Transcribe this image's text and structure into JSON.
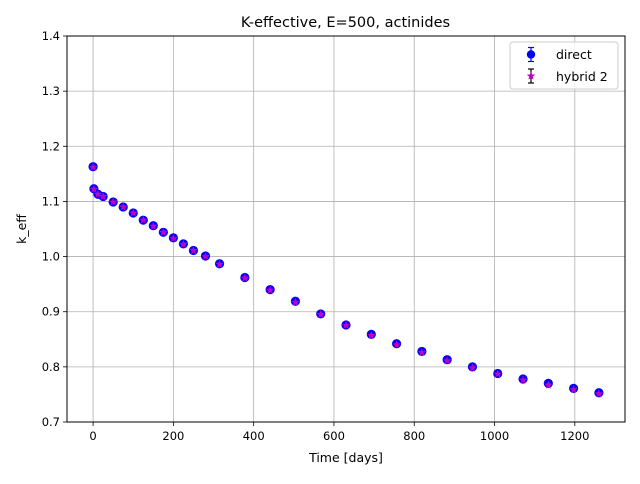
{
  "chart_data": {
    "type": "scatter",
    "title": "K-effective, E=500, actinides",
    "xlabel": "Time [days]",
    "ylabel": "k_eff",
    "xlim": [
      -65,
      1325
    ],
    "ylim": [
      0.7,
      1.4
    ],
    "xticks": [
      0,
      200,
      400,
      600,
      800,
      1000,
      1200
    ],
    "yticks": [
      0.7,
      0.8,
      0.9,
      1.0,
      1.1,
      1.2,
      1.3,
      1.4
    ],
    "xtick_labels": [
      "0",
      "200",
      "400",
      "600",
      "800",
      "1000",
      "1200"
    ],
    "ytick_labels": [
      "0.7",
      "0.8",
      "0.9",
      "1.0",
      "1.1",
      "1.2",
      "1.3",
      "1.4"
    ],
    "grid": true,
    "legend_position": "top-right",
    "series": [
      {
        "name": "direct",
        "color": "#0000ff",
        "marker": "circle",
        "x": [
          0,
          2,
          12,
          25,
          50,
          75,
          100,
          125,
          150,
          175,
          200,
          225,
          250,
          280,
          315,
          378,
          441,
          504,
          567,
          630,
          693,
          756,
          819,
          882,
          945,
          1008,
          1071,
          1134,
          1197,
          1260
        ],
        "y": [
          1.163,
          1.123,
          1.113,
          1.109,
          1.099,
          1.09,
          1.079,
          1.066,
          1.056,
          1.044,
          1.034,
          1.023,
          1.011,
          1.001,
          0.987,
          0.962,
          0.94,
          0.919,
          0.896,
          0.876,
          0.859,
          0.842,
          0.828,
          0.813,
          0.8,
          0.788,
          0.778,
          0.77,
          0.761,
          0.753
        ]
      },
      {
        "name": "hybrid 2",
        "color": "#bf00bf",
        "marker": "star",
        "x": [
          0,
          2,
          12,
          25,
          50,
          75,
          100,
          125,
          150,
          175,
          200,
          225,
          250,
          280,
          315,
          378,
          441,
          504,
          567,
          630,
          693,
          756,
          819,
          882,
          945,
          1008,
          1071,
          1134,
          1197,
          1260
        ],
        "y": [
          1.162,
          1.122,
          1.113,
          1.109,
          1.099,
          1.09,
          1.079,
          1.066,
          1.055,
          1.044,
          1.033,
          1.022,
          1.011,
          1.0,
          0.986,
          0.961,
          0.939,
          0.917,
          0.895,
          0.875,
          0.857,
          0.84,
          0.826,
          0.811,
          0.798,
          0.787,
          0.776,
          0.767,
          0.759,
          0.751
        ]
      }
    ]
  }
}
